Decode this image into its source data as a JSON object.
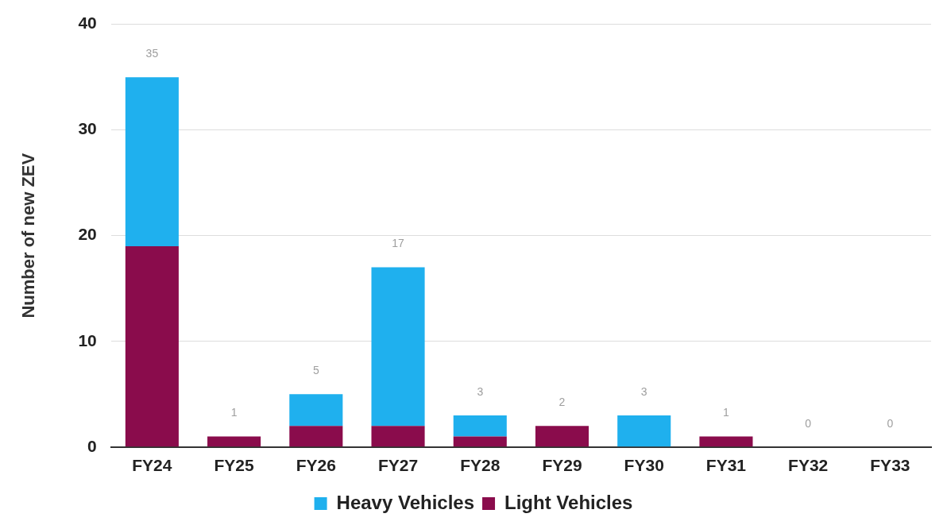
{
  "chart_data": {
    "type": "bar",
    "stacked": true,
    "ylabel": "Number of new ZEV",
    "categories": [
      "FY24",
      "FY25",
      "FY26",
      "FY27",
      "FY28",
      "FY29",
      "FY30",
      "FY31",
      "FY32",
      "FY33"
    ],
    "series": [
      {
        "name": "Light Vehicles",
        "color": "#8a0c4c",
        "values": [
          19,
          1,
          2,
          2,
          1,
          2,
          0,
          1,
          0,
          0
        ]
      },
      {
        "name": "Heavy Vehicles",
        "color": "#1fb0ee",
        "values": [
          16,
          0,
          3,
          15,
          2,
          0,
          3,
          0,
          0,
          0
        ]
      }
    ],
    "totals": [
      "35",
      "1",
      "5",
      "17",
      "3",
      "2",
      "3",
      "1",
      "0",
      "0"
    ],
    "ylim": [
      0,
      40
    ],
    "yticks": [
      0,
      10,
      20,
      30,
      40
    ],
    "grid": "y",
    "legend": "bottom"
  }
}
